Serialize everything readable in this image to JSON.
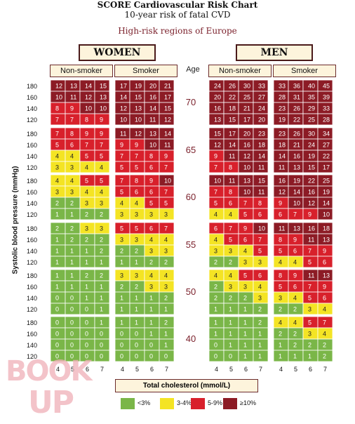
{
  "chart_data": {
    "type": "heatmap",
    "title": "SCORE Cardiovascular Risk Chart",
    "subtitle": "10-year risk of fatal CVD",
    "region": "High-risk regions of Europe",
    "xlabel": "Total cholesterol (mmol/L)",
    "ylabel": "Systolic blood pressure (mmHg)",
    "age_label": "Age",
    "sexes": [
      "WOMEN",
      "MEN"
    ],
    "smoking_status": [
      "Non-smoker",
      "Smoker"
    ],
    "ages": [
      70,
      65,
      60,
      55,
      50,
      40
    ],
    "sbp": [
      180,
      160,
      140,
      120
    ],
    "cholesterol": [
      4,
      5,
      6,
      7
    ],
    "legend": [
      {
        "label": "<3%",
        "color": "#7ab648"
      },
      {
        "label": "3-4%",
        "color": "#f4e424"
      },
      {
        "label": "5-9%",
        "color": "#d8202b"
      },
      {
        "label": "≥10%",
        "color": "#8c1b25"
      }
    ],
    "thresholds": [
      3,
      5,
      10
    ],
    "values": {
      "women_nonsmoker": {
        "70": [
          [
            12,
            13,
            14,
            15
          ],
          [
            10,
            11,
            12,
            13
          ],
          [
            8,
            9,
            10,
            10
          ],
          [
            7,
            7,
            8,
            9
          ]
        ],
        "65": [
          [
            7,
            8,
            9,
            9
          ],
          [
            5,
            6,
            7,
            7
          ],
          [
            4,
            4,
            5,
            5
          ],
          [
            3,
            3,
            4,
            4
          ]
        ],
        "60": [
          [
            4,
            4,
            5,
            5
          ],
          [
            3,
            3,
            4,
            4
          ],
          [
            2,
            2,
            3,
            3
          ],
          [
            1,
            1,
            2,
            2
          ]
        ],
        "55": [
          [
            2,
            2,
            3,
            3
          ],
          [
            1,
            2,
            2,
            2
          ],
          [
            1,
            1,
            1,
            2
          ],
          [
            1,
            1,
            1,
            1
          ]
        ],
        "50": [
          [
            1,
            1,
            2,
            2
          ],
          [
            1,
            1,
            1,
            1
          ],
          [
            0,
            0,
            1,
            1
          ],
          [
            0,
            0,
            0,
            1
          ]
        ],
        "40": [
          [
            0,
            0,
            0,
            1
          ],
          [
            0,
            0,
            0,
            0
          ],
          [
            0,
            0,
            0,
            0
          ],
          [
            0,
            0,
            0,
            0
          ]
        ]
      },
      "women_smoker": {
        "70": [
          [
            17,
            19,
            20,
            21
          ],
          [
            14,
            15,
            16,
            17
          ],
          [
            12,
            13,
            14,
            15
          ],
          [
            10,
            10,
            11,
            12
          ]
        ],
        "65": [
          [
            11,
            12,
            13,
            14
          ],
          [
            9,
            9,
            10,
            11
          ],
          [
            7,
            7,
            8,
            9
          ],
          [
            5,
            5,
            6,
            7
          ]
        ],
        "60": [
          [
            7,
            8,
            9,
            10
          ],
          [
            5,
            6,
            6,
            7
          ],
          [
            4,
            4,
            5,
            5
          ],
          [
            3,
            3,
            3,
            3
          ]
        ],
        "55": [
          [
            5,
            5,
            6,
            7
          ],
          [
            3,
            3,
            4,
            4
          ],
          [
            2,
            2,
            3,
            3
          ],
          [
            1,
            1,
            2,
            2
          ]
        ],
        "50": [
          [
            3,
            3,
            4,
            4
          ],
          [
            2,
            2,
            3,
            3
          ],
          [
            1,
            1,
            1,
            2
          ],
          [
            1,
            1,
            1,
            1
          ]
        ],
        "40": [
          [
            1,
            1,
            1,
            2
          ],
          [
            0,
            0,
            1,
            1
          ],
          [
            0,
            0,
            0,
            1
          ],
          [
            0,
            0,
            0,
            0
          ]
        ]
      },
      "men_nonsmoker": {
        "70": [
          [
            24,
            26,
            30,
            33
          ],
          [
            20,
            22,
            25,
            27
          ],
          [
            16,
            18,
            21,
            24
          ],
          [
            13,
            15,
            17,
            20
          ]
        ],
        "65": [
          [
            15,
            17,
            20,
            23
          ],
          [
            12,
            14,
            16,
            18
          ],
          [
            9,
            11,
            12,
            14
          ],
          [
            7,
            8,
            10,
            11
          ]
        ],
        "60": [
          [
            10,
            11,
            13,
            15
          ],
          [
            7,
            8,
            10,
            11
          ],
          [
            5,
            6,
            7,
            8
          ],
          [
            4,
            4,
            5,
            6
          ]
        ],
        "55": [
          [
            6,
            7,
            9,
            10
          ],
          [
            4,
            5,
            6,
            7
          ],
          [
            3,
            3,
            4,
            5
          ],
          [
            2,
            2,
            3,
            3
          ]
        ],
        "50": [
          [
            4,
            4,
            5,
            6
          ],
          [
            2,
            3,
            3,
            4
          ],
          [
            2,
            2,
            2,
            3
          ],
          [
            1,
            1,
            1,
            2
          ]
        ],
        "40": [
          [
            1,
            1,
            1,
            2
          ],
          [
            1,
            1,
            1,
            1
          ],
          [
            0,
            1,
            1,
            1
          ],
          [
            0,
            0,
            1,
            1
          ]
        ]
      },
      "men_smoker": {
        "70": [
          [
            33,
            36,
            40,
            45
          ],
          [
            28,
            31,
            35,
            39
          ],
          [
            23,
            26,
            29,
            33
          ],
          [
            19,
            22,
            25,
            28
          ]
        ],
        "65": [
          [
            23,
            26,
            30,
            34
          ],
          [
            18,
            21,
            24,
            27
          ],
          [
            14,
            16,
            19,
            22
          ],
          [
            11,
            13,
            15,
            17
          ]
        ],
        "60": [
          [
            16,
            19,
            22,
            25
          ],
          [
            12,
            14,
            16,
            19
          ],
          [
            9,
            10,
            12,
            14
          ],
          [
            6,
            7,
            9,
            10
          ]
        ],
        "55": [
          [
            11,
            13,
            16,
            18
          ],
          [
            8,
            9,
            11,
            13
          ],
          [
            5,
            6,
            7,
            9
          ],
          [
            4,
            4,
            5,
            6
          ]
        ],
        "50": [
          [
            8,
            9,
            11,
            13
          ],
          [
            5,
            6,
            7,
            9
          ],
          [
            3,
            4,
            5,
            6
          ],
          [
            2,
            2,
            3,
            4
          ]
        ],
        "40": [
          [
            4,
            4,
            5,
            7
          ],
          [
            2,
            2,
            3,
            4
          ],
          [
            1,
            2,
            2,
            2
          ],
          [
            1,
            1,
            1,
            2
          ]
        ]
      }
    }
  },
  "watermark": {
    "line1": "BOOK",
    "line2": "UP"
  }
}
